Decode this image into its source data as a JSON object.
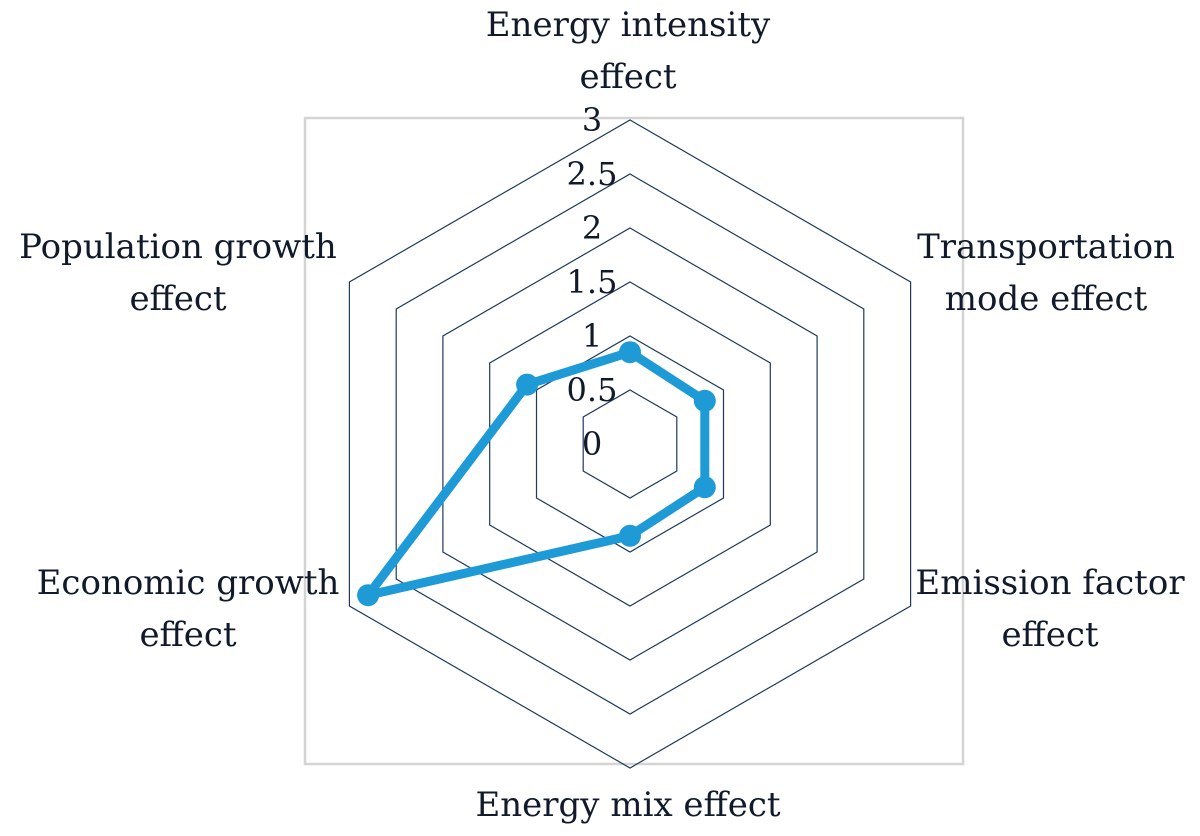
{
  "chart_data": {
    "type": "radar",
    "axes": [
      [
        "Energy intensity",
        "effect"
      ],
      [
        "Transportation",
        "mode effect"
      ],
      [
        "Emission factor",
        "effect"
      ],
      [
        "Energy mix effect"
      ],
      [
        "Economic growth",
        "effect"
      ],
      [
        "Population growth",
        "effect"
      ]
    ],
    "series": [
      {
        "name": "",
        "values": [
          0.85,
          0.8,
          0.8,
          0.85,
          2.8,
          1.1
        ]
      }
    ],
    "ticks": [
      "0",
      "0.5",
      "1",
      "1.5",
      "2",
      "2.5",
      "3"
    ],
    "rmax": 3,
    "grid": true,
    "legend": "none"
  },
  "colors": {
    "series": "#1e9ad6",
    "grid": "#1f3a5a",
    "frame": "#d4d4d4",
    "text": "#111a2a"
  }
}
